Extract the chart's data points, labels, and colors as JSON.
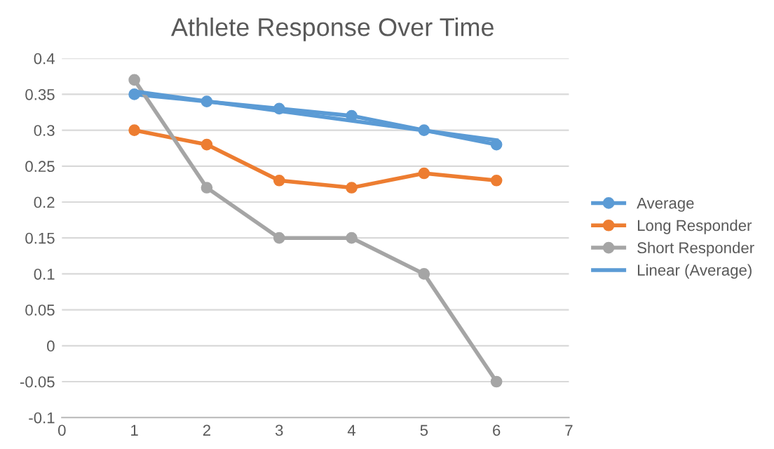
{
  "chart_data": {
    "type": "line",
    "title": "Athlete Response Over Time",
    "x": [
      1,
      2,
      3,
      4,
      5,
      6
    ],
    "series": [
      {
        "name": "Average",
        "color": "#5b9bd5",
        "values": [
          0.35,
          0.34,
          0.33,
          0.32,
          0.3,
          0.28
        ],
        "marker": "circle"
      },
      {
        "name": "Long Responder",
        "color": "#ed7d31",
        "values": [
          0.3,
          0.28,
          0.23,
          0.22,
          0.24,
          0.23
        ],
        "marker": "circle"
      },
      {
        "name": "Short Responder",
        "color": "#a5a5a5",
        "values": [
          0.37,
          0.22,
          0.15,
          0.15,
          0.1,
          -0.05
        ],
        "marker": "circle"
      },
      {
        "name": "Linear (Average)",
        "color": "#5b9bd5",
        "x": [
          1,
          6
        ],
        "values": [
          0.354,
          0.286
        ],
        "marker": "none"
      }
    ],
    "xlim": [
      0,
      7
    ],
    "xticks": [
      0,
      1,
      2,
      3,
      4,
      5,
      6,
      7
    ],
    "ylim": [
      -0.1,
      0.4
    ],
    "yticks": [
      {
        "value": -0.1,
        "label": "-0.1"
      },
      {
        "value": -0.05,
        "label": "-0.05"
      },
      0,
      {
        "value": 0.05,
        "label": "0.05"
      },
      {
        "value": 0.1,
        "label": "0.1"
      },
      {
        "value": 0.15,
        "label": "0.15"
      },
      {
        "value": 0.2,
        "label": "0.2"
      },
      {
        "value": 0.25,
        "label": "0.25"
      },
      {
        "value": 0.3,
        "label": "0.3"
      },
      {
        "value": 0.35,
        "label": "0.35"
      },
      {
        "value": 0.4,
        "label": "0.4"
      }
    ],
    "grid": "y",
    "legend": "right",
    "line_style": "solid"
  }
}
